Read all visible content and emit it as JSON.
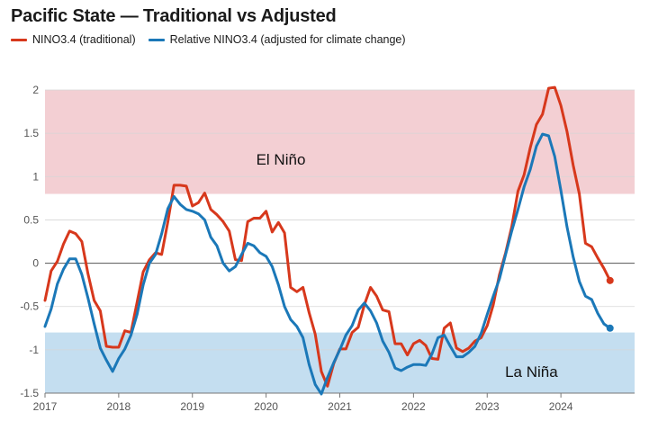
{
  "title": "Pacific State — Traditional vs Adjusted",
  "legend": [
    {
      "label": "NINO3.4 (traditional)",
      "color": "#d7381c"
    },
    {
      "label": "Relative NINO3.4 (adjusted for climate change)",
      "color": "#1b78b8"
    }
  ],
  "chart_data": {
    "type": "line",
    "title": "Pacific State — Traditional vs Adjusted",
    "xlabel": "",
    "ylabel": "",
    "xlim": [
      2017.0,
      2025.0
    ],
    "ylim": [
      -1.5,
      2.0
    ],
    "yticks": [
      2,
      1.5,
      1,
      0.5,
      0,
      -0.5,
      -1,
      -1.5
    ],
    "ytick_labels": [
      "2",
      "1.5",
      "1",
      "0.5",
      "0",
      "-0.5",
      "-1",
      "-1.5"
    ],
    "xticks": [
      2017,
      2018,
      2019,
      2020,
      2021,
      2022,
      2023,
      2024
    ],
    "xtick_labels": [
      "2017",
      "2018",
      "2019",
      "2020",
      "2021",
      "2022",
      "2023",
      "2024"
    ],
    "grid": true,
    "bands": [
      {
        "label": "El Niño",
        "from": 0.8,
        "to": 2.0,
        "color": "#f3cfd3"
      },
      {
        "label": "La Niña",
        "from": -1.5,
        "to": -0.8,
        "color": "#c4def0"
      }
    ],
    "x": [
      2017.0,
      2017.083,
      2017.167,
      2017.25,
      2017.333,
      2017.417,
      2017.5,
      2017.583,
      2017.667,
      2017.75,
      2017.833,
      2017.917,
      2018.0,
      2018.083,
      2018.167,
      2018.25,
      2018.333,
      2018.417,
      2018.5,
      2018.583,
      2018.667,
      2018.75,
      2018.833,
      2018.917,
      2019.0,
      2019.083,
      2019.167,
      2019.25,
      2019.333,
      2019.417,
      2019.5,
      2019.583,
      2019.667,
      2019.75,
      2019.833,
      2019.917,
      2020.0,
      2020.083,
      2020.167,
      2020.25,
      2020.333,
      2020.417,
      2020.5,
      2020.583,
      2020.667,
      2020.75,
      2020.833,
      2020.917,
      2021.0,
      2021.083,
      2021.167,
      2021.25,
      2021.333,
      2021.417,
      2021.5,
      2021.583,
      2021.667,
      2021.75,
      2021.833,
      2021.917,
      2022.0,
      2022.083,
      2022.167,
      2022.25,
      2022.333,
      2022.417,
      2022.5,
      2022.583,
      2022.667,
      2022.75,
      2022.833,
      2022.917,
      2023.0,
      2023.083,
      2023.167,
      2023.25,
      2023.333,
      2023.417,
      2023.5,
      2023.583,
      2023.667,
      2023.75,
      2023.833,
      2023.917,
      2024.0,
      2024.083,
      2024.167,
      2024.25,
      2024.333,
      2024.417,
      2024.5,
      2024.583,
      2024.667
    ],
    "series": [
      {
        "name": "NINO3.4 (traditional)",
        "color": "#d7381c",
        "values": [
          -0.43,
          -0.09,
          0.02,
          0.22,
          0.37,
          0.34,
          0.25,
          -0.12,
          -0.43,
          -0.55,
          -0.96,
          -0.97,
          -0.97,
          -0.78,
          -0.8,
          -0.45,
          -0.1,
          0.04,
          0.12,
          0.1,
          0.48,
          0.9,
          0.9,
          0.89,
          0.66,
          0.7,
          0.81,
          0.62,
          0.56,
          0.48,
          0.37,
          0.04,
          0.03,
          0.48,
          0.52,
          0.52,
          0.6,
          0.36,
          0.47,
          0.35,
          -0.28,
          -0.33,
          -0.28,
          -0.57,
          -0.82,
          -1.25,
          -1.42,
          -1.16,
          -0.99,
          -0.99,
          -0.8,
          -0.74,
          -0.48,
          -0.28,
          -0.38,
          -0.54,
          -0.56,
          -0.93,
          -0.93,
          -1.06,
          -0.93,
          -0.89,
          -0.95,
          -1.1,
          -1.11,
          -0.75,
          -0.69,
          -0.98,
          -1.02,
          -0.98,
          -0.9,
          -0.86,
          -0.72,
          -0.48,
          -0.13,
          0.12,
          0.42,
          0.83,
          1.02,
          1.33,
          1.6,
          1.72,
          2.02,
          2.03,
          1.82,
          1.52,
          1.13,
          0.8,
          0.23,
          0.19,
          0.06,
          -0.06,
          -0.2
        ]
      },
      {
        "name": "Relative NINO3.4 (adjusted for climate change)",
        "color": "#1b78b8",
        "values": [
          -0.73,
          -0.53,
          -0.24,
          -0.07,
          0.05,
          0.05,
          -0.13,
          -0.4,
          -0.7,
          -0.98,
          -1.12,
          -1.25,
          -1.1,
          -0.99,
          -0.83,
          -0.59,
          -0.25,
          0.0,
          0.1,
          0.34,
          0.63,
          0.77,
          0.68,
          0.62,
          0.6,
          0.57,
          0.5,
          0.3,
          0.2,
          0.0,
          -0.09,
          -0.04,
          0.1,
          0.23,
          0.2,
          0.12,
          0.08,
          -0.04,
          -0.25,
          -0.5,
          -0.65,
          -0.73,
          -0.86,
          -1.17,
          -1.4,
          -1.51,
          -1.32,
          -1.15,
          -1.0,
          -0.83,
          -0.72,
          -0.54,
          -0.46,
          -0.55,
          -0.69,
          -0.9,
          -1.03,
          -1.21,
          -1.24,
          -1.2,
          -1.17,
          -1.17,
          -1.18,
          -1.05,
          -0.86,
          -0.83,
          -0.96,
          -1.08,
          -1.08,
          -1.03,
          -0.96,
          -0.81,
          -0.59,
          -0.38,
          -0.18,
          0.1,
          0.37,
          0.62,
          0.88,
          1.08,
          1.35,
          1.49,
          1.47,
          1.23,
          0.84,
          0.42,
          0.07,
          -0.21,
          -0.38,
          -0.42,
          -0.58,
          -0.7,
          -0.75
        ]
      }
    ]
  }
}
